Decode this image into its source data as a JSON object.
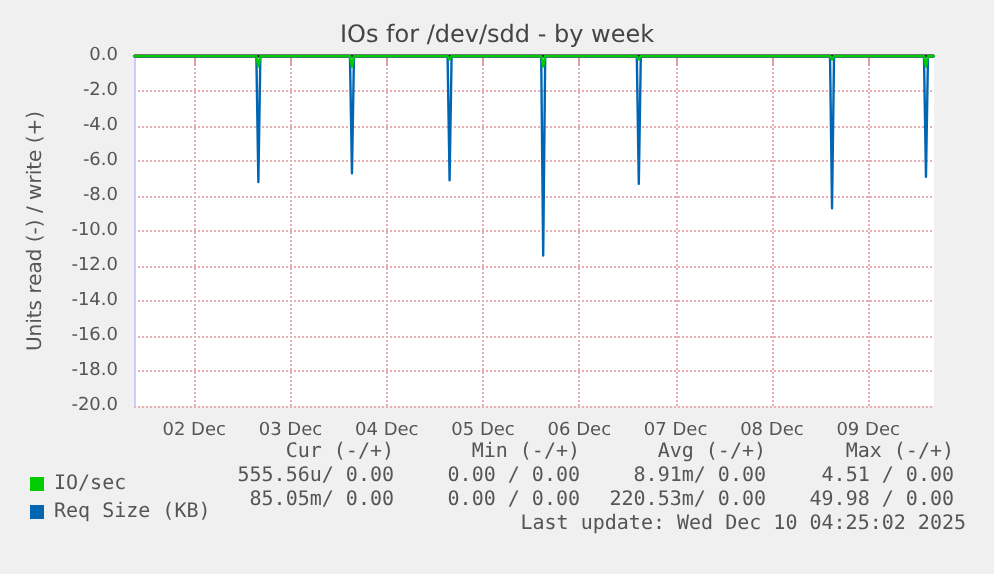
{
  "chart_data": {
    "type": "line",
    "title": "IOs for /dev/sdd - by week",
    "ylabel": "Units read (-) / write (+)",
    "x": [
      "2025-12-01T21:00",
      "2025-12-03T03:30",
      "2025-12-03T04:00",
      "2025-12-03T04:30",
      "2025-12-04T02:50",
      "2025-12-04T03:20",
      "2025-12-04T03:50",
      "2025-12-05T03:10",
      "2025-12-05T03:40",
      "2025-12-05T04:10",
      "2025-12-06T02:30",
      "2025-12-06T03:00",
      "2025-12-06T03:30",
      "2025-12-07T02:20",
      "2025-12-07T02:50",
      "2025-12-07T03:20",
      "2025-12-09T02:30",
      "2025-12-09T03:00",
      "2025-12-09T03:30",
      "2025-12-10T01:55",
      "2025-12-10T02:25",
      "2025-12-10T02:55",
      "2025-12-10T04:25"
    ],
    "series": [
      {
        "name": "IO/sec",
        "color": "#00cc00",
        "values": [
          0,
          0,
          -0.6,
          0,
          0,
          -0.6,
          0,
          0,
          -0.2,
          0,
          0,
          -0.6,
          0,
          0,
          -0.2,
          0,
          0,
          -0.2,
          0,
          0,
          -0.6,
          0,
          0
        ]
      },
      {
        "name": "Req Size (KB)",
        "color": "#0066b3",
        "values": [
          0,
          0,
          -7.2,
          0,
          0,
          -6.7,
          0,
          0,
          -7.1,
          0,
          0,
          -11.4,
          0,
          0,
          -7.3,
          0,
          0,
          -8.7,
          0,
          0,
          -6.9,
          0,
          0
        ]
      }
    ],
    "xlim": [
      "2025-12-01T21:00",
      "2025-12-10T04:25"
    ],
    "xticks": [
      {
        "value": "2025-12-02T12:00",
        "label": "02 Dec"
      },
      {
        "value": "2025-12-03T12:00",
        "label": "03 Dec"
      },
      {
        "value": "2025-12-04T12:00",
        "label": "04 Dec"
      },
      {
        "value": "2025-12-05T12:00",
        "label": "05 Dec"
      },
      {
        "value": "2025-12-06T12:00",
        "label": "06 Dec"
      },
      {
        "value": "2025-12-07T12:00",
        "label": "07 Dec"
      },
      {
        "value": "2025-12-08T12:00",
        "label": "08 Dec"
      },
      {
        "value": "2025-12-09T12:00",
        "label": "09 Dec"
      }
    ],
    "ylim": [
      -20,
      0
    ],
    "yticks": [
      {
        "value": 0,
        "label": "0.0"
      },
      {
        "value": -2,
        "label": "-2.0"
      },
      {
        "value": -4,
        "label": "-4.0"
      },
      {
        "value": -6,
        "label": "-6.0"
      },
      {
        "value": -8,
        "label": "-8.0"
      },
      {
        "value": -10,
        "label": "-10.0"
      },
      {
        "value": -12,
        "label": "-12.0"
      },
      {
        "value": -14,
        "label": "-14.0"
      },
      {
        "value": -16,
        "label": "-16.0"
      },
      {
        "value": -18,
        "label": "-18.0"
      },
      {
        "value": -20,
        "label": "-20.0"
      }
    ],
    "ref_lines": [
      {
        "axis": "y",
        "value": 0,
        "color": "#000000"
      }
    ],
    "grid": true,
    "legend": "bottom left",
    "marker": "none",
    "line_style": "solid",
    "annotations": [
      "Cur (-/+)",
      "Min (-/+)",
      "Avg (-/+)",
      "Max (-/+)",
      "555.56u/ 0.00",
      "0.00 / 0.00",
      "8.91m/ 0.00",
      "4.51 / 0.00",
      "85.05m/ 0.00",
      "0.00 / 0.00",
      "220.53m/ 0.00",
      "49.98 / 0.00",
      "Last update: Wed Dec 10 04:25:02 2025"
    ]
  }
}
